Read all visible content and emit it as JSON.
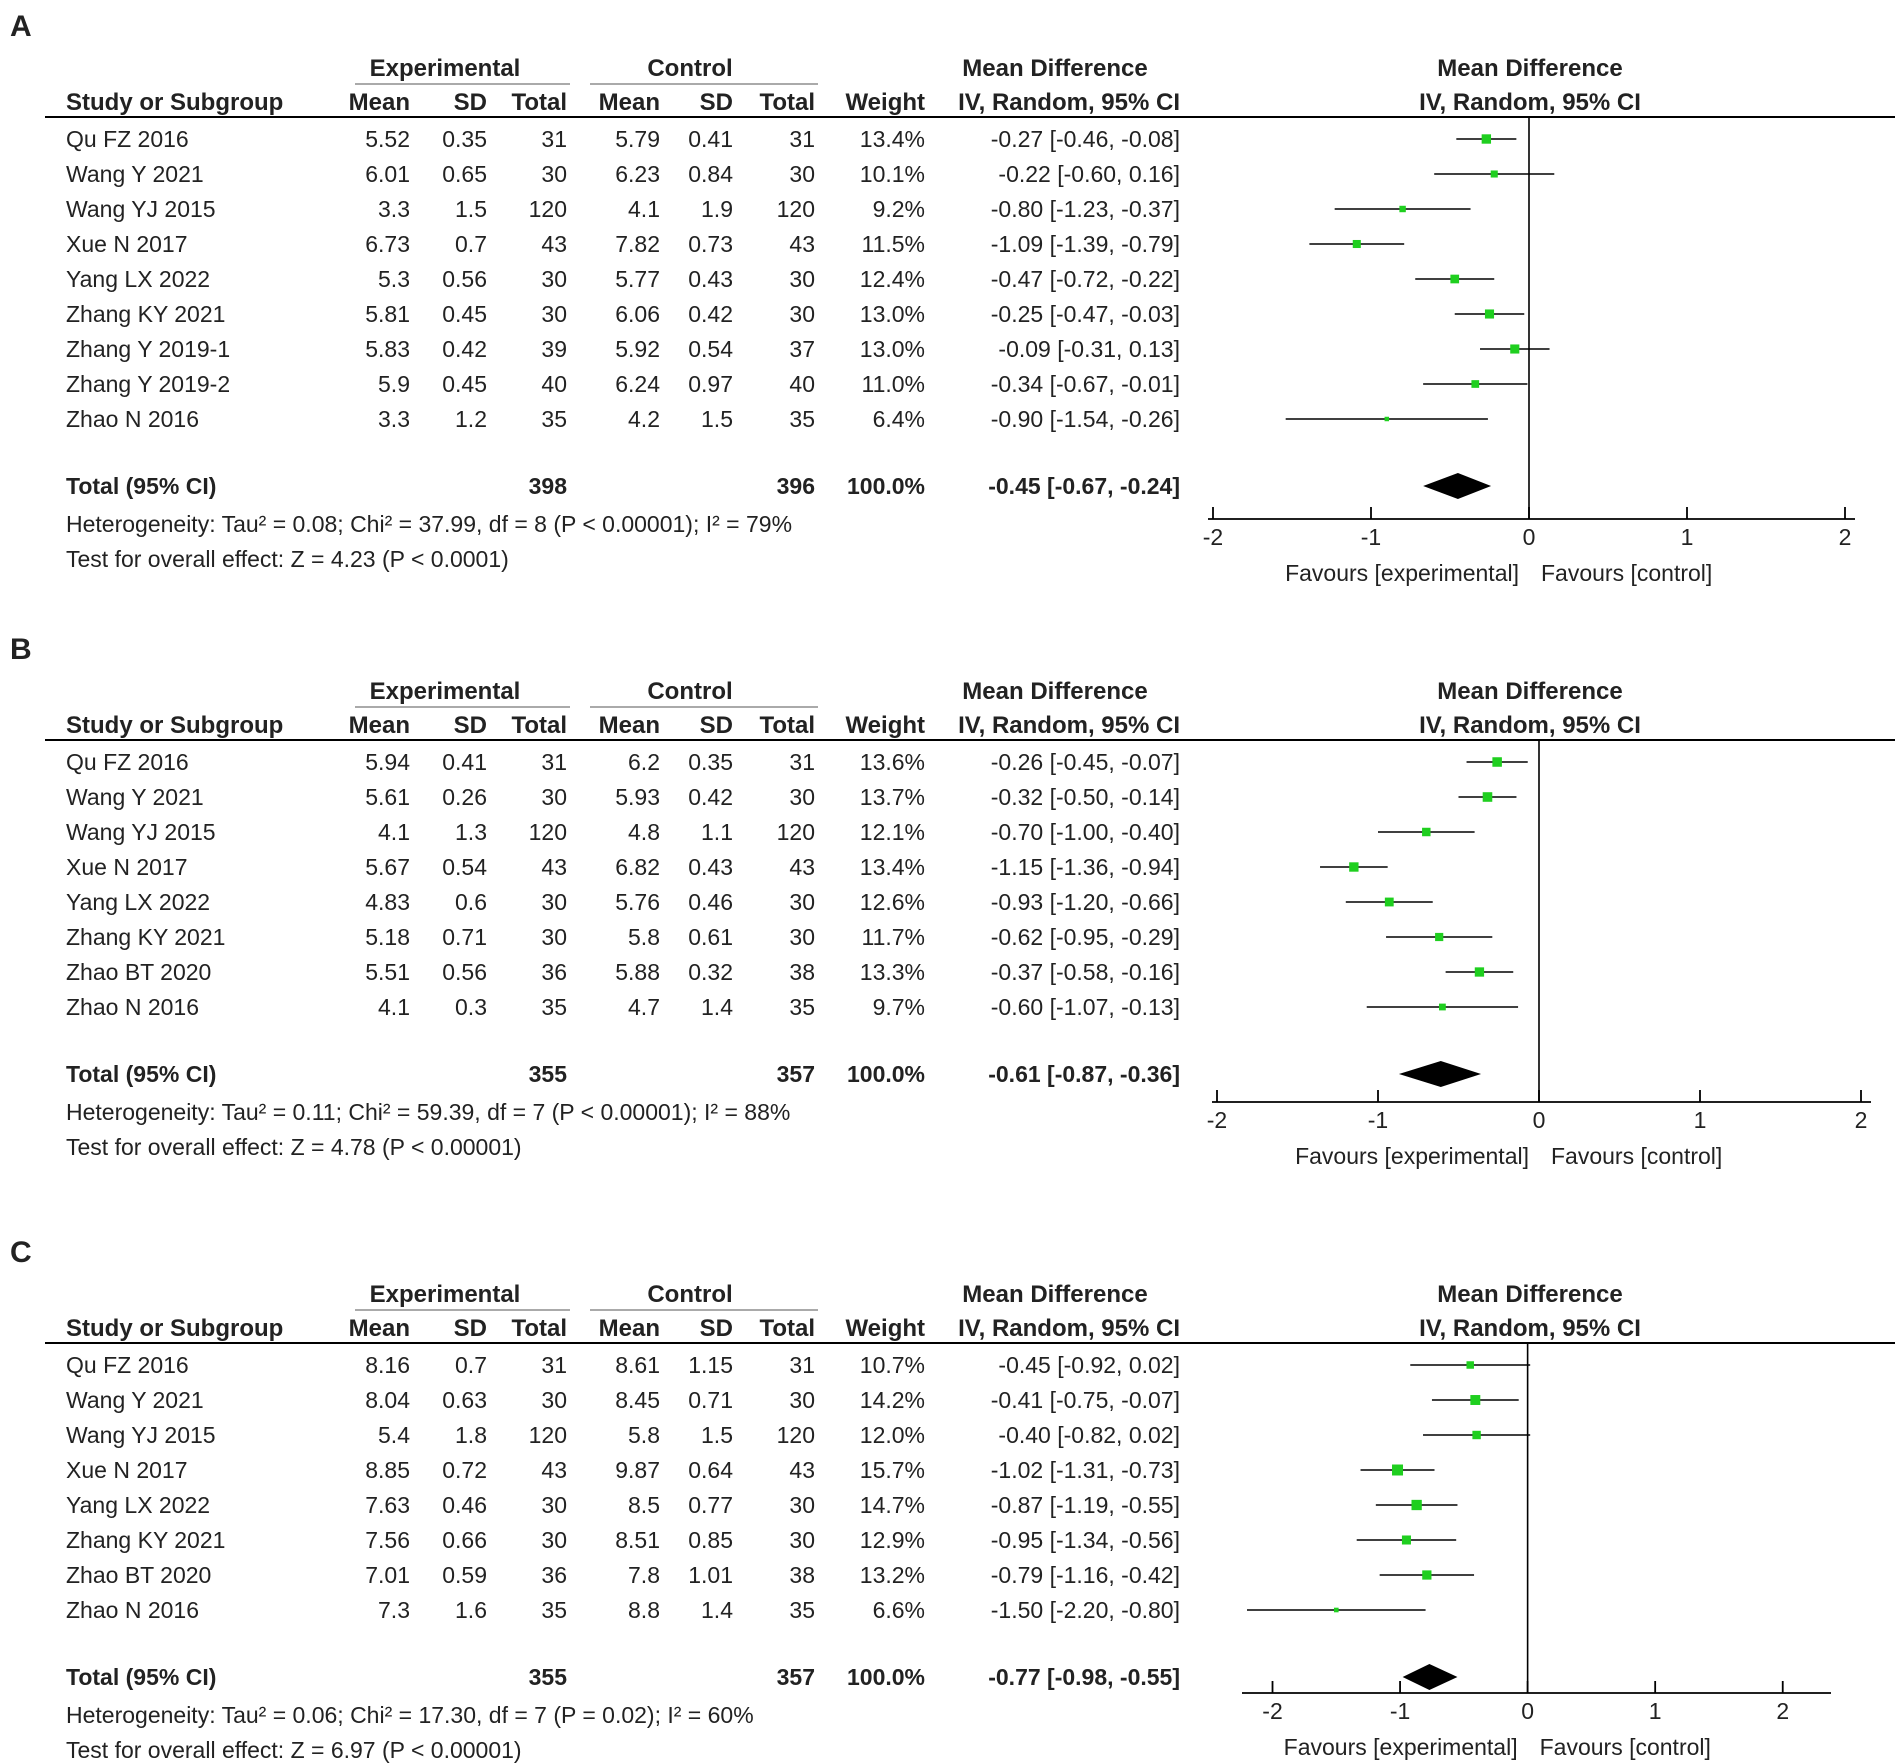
{
  "chart_data": [
    {
      "type": "forest",
      "panel_label": "A",
      "header": {
        "experimental": "Experimental",
        "control": "Control",
        "effect_group": "Mean Difference",
        "columns": [
          "Study or Subgroup",
          "Mean",
          "SD",
          "Total",
          "Mean",
          "SD",
          "Total",
          "Weight",
          "IV, Random, 95% CI"
        ],
        "plot_title": "Mean Difference",
        "plot_subtitle": "IV, Random, 95% CI"
      },
      "studies": [
        {
          "name": "Qu FZ 2016",
          "exp_mean": "5.52",
          "exp_sd": "0.35",
          "exp_total": "31",
          "ctl_mean": "5.79",
          "ctl_sd": "0.41",
          "ctl_total": "31",
          "weight": "13.4%",
          "ci_text": "-0.27 [-0.46, -0.08]",
          "md": -0.27,
          "lo": -0.46,
          "hi": -0.08
        },
        {
          "name": "Wang Y 2021",
          "exp_mean": "6.01",
          "exp_sd": "0.65",
          "exp_total": "30",
          "ctl_mean": "6.23",
          "ctl_sd": "0.84",
          "ctl_total": "30",
          "weight": "10.1%",
          "ci_text": "-0.22 [-0.60, 0.16]",
          "md": -0.22,
          "lo": -0.6,
          "hi": 0.16
        },
        {
          "name": "Wang YJ 2015",
          "exp_mean": "3.3",
          "exp_sd": "1.5",
          "exp_total": "120",
          "ctl_mean": "4.1",
          "ctl_sd": "1.9",
          "ctl_total": "120",
          "weight": "9.2%",
          "ci_text": "-0.80 [-1.23, -0.37]",
          "md": -0.8,
          "lo": -1.23,
          "hi": -0.37
        },
        {
          "name": "Xue N 2017",
          "exp_mean": "6.73",
          "exp_sd": "0.7",
          "exp_total": "43",
          "ctl_mean": "7.82",
          "ctl_sd": "0.73",
          "ctl_total": "43",
          "weight": "11.5%",
          "ci_text": "-1.09 [-1.39, -0.79]",
          "md": -1.09,
          "lo": -1.39,
          "hi": -0.79
        },
        {
          "name": "Yang LX 2022",
          "exp_mean": "5.3",
          "exp_sd": "0.56",
          "exp_total": "30",
          "ctl_mean": "5.77",
          "ctl_sd": "0.43",
          "ctl_total": "30",
          "weight": "12.4%",
          "ci_text": "-0.47 [-0.72, -0.22]",
          "md": -0.47,
          "lo": -0.72,
          "hi": -0.22
        },
        {
          "name": "Zhang KY 2021",
          "exp_mean": "5.81",
          "exp_sd": "0.45",
          "exp_total": "30",
          "ctl_mean": "6.06",
          "ctl_sd": "0.42",
          "ctl_total": "30",
          "weight": "13.0%",
          "ci_text": "-0.25 [-0.47, -0.03]",
          "md": -0.25,
          "lo": -0.47,
          "hi": -0.03
        },
        {
          "name": "Zhang Y 2019-1",
          "exp_mean": "5.83",
          "exp_sd": "0.42",
          "exp_total": "39",
          "ctl_mean": "5.92",
          "ctl_sd": "0.54",
          "ctl_total": "37",
          "weight": "13.0%",
          "ci_text": "-0.09 [-0.31, 0.13]",
          "md": -0.09,
          "lo": -0.31,
          "hi": 0.13
        },
        {
          "name": "Zhang Y 2019-2",
          "exp_mean": "5.9",
          "exp_sd": "0.45",
          "exp_total": "40",
          "ctl_mean": "6.24",
          "ctl_sd": "0.97",
          "ctl_total": "40",
          "weight": "11.0%",
          "ci_text": "-0.34 [-0.67, -0.01]",
          "md": -0.34,
          "lo": -0.67,
          "hi": -0.01
        },
        {
          "name": "Zhao N 2016",
          "exp_mean": "3.3",
          "exp_sd": "1.2",
          "exp_total": "35",
          "ctl_mean": "4.2",
          "ctl_sd": "1.5",
          "ctl_total": "35",
          "weight": "6.4%",
          "ci_text": "-0.90 [-1.54, -0.26]",
          "md": -0.9,
          "lo": -1.54,
          "hi": -0.26
        }
      ],
      "total": {
        "label": "Total (95% CI)",
        "exp_total": "398",
        "ctl_total": "396",
        "weight": "100.0%",
        "ci_text": "-0.45 [-0.67, -0.24]",
        "md": -0.45,
        "lo": -0.67,
        "hi": -0.24
      },
      "heterogeneity": "Heterogeneity: Tau² = 0.08; Chi² = 37.99, df = 8 (P < 0.00001); I² = 79%",
      "overall_effect": "Test for overall effect: Z = 4.23 (P < 0.0001)",
      "axis": {
        "ticks": [
          -2,
          -1,
          0,
          1,
          2
        ],
        "tick_labels": [
          "-2",
          "-1",
          "0",
          "1",
          "2"
        ],
        "xlim": [
          -2,
          2
        ]
      },
      "favours_left": "Favours [experimental]",
      "favours_right": "Favours [control]"
    },
    {
      "type": "forest",
      "panel_label": "B",
      "header": {
        "experimental": "Experimental",
        "control": "Control",
        "effect_group": "Mean Difference",
        "columns": [
          "Study or Subgroup",
          "Mean",
          "SD",
          "Total",
          "Mean",
          "SD",
          "Total",
          "Weight",
          "IV, Random, 95% CI"
        ],
        "plot_title": "Mean Difference",
        "plot_subtitle": "IV, Random, 95% CI"
      },
      "studies": [
        {
          "name": "Qu FZ 2016",
          "exp_mean": "5.94",
          "exp_sd": "0.41",
          "exp_total": "31",
          "ctl_mean": "6.2",
          "ctl_sd": "0.35",
          "ctl_total": "31",
          "weight": "13.6%",
          "ci_text": "-0.26 [-0.45, -0.07]",
          "md": -0.26,
          "lo": -0.45,
          "hi": -0.07
        },
        {
          "name": "Wang Y 2021",
          "exp_mean": "5.61",
          "exp_sd": "0.26",
          "exp_total": "30",
          "ctl_mean": "5.93",
          "ctl_sd": "0.42",
          "ctl_total": "30",
          "weight": "13.7%",
          "ci_text": "-0.32 [-0.50, -0.14]",
          "md": -0.32,
          "lo": -0.5,
          "hi": -0.14
        },
        {
          "name": "Wang YJ 2015",
          "exp_mean": "4.1",
          "exp_sd": "1.3",
          "exp_total": "120",
          "ctl_mean": "4.8",
          "ctl_sd": "1.1",
          "ctl_total": "120",
          "weight": "12.1%",
          "ci_text": "-0.70 [-1.00, -0.40]",
          "md": -0.7,
          "lo": -1.0,
          "hi": -0.4
        },
        {
          "name": "Xue N 2017",
          "exp_mean": "5.67",
          "exp_sd": "0.54",
          "exp_total": "43",
          "ctl_mean": "6.82",
          "ctl_sd": "0.43",
          "ctl_total": "43",
          "weight": "13.4%",
          "ci_text": "-1.15 [-1.36, -0.94]",
          "md": -1.15,
          "lo": -1.36,
          "hi": -0.94
        },
        {
          "name": "Yang LX 2022",
          "exp_mean": "4.83",
          "exp_sd": "0.6",
          "exp_total": "30",
          "ctl_mean": "5.76",
          "ctl_sd": "0.46",
          "ctl_total": "30",
          "weight": "12.6%",
          "ci_text": "-0.93 [-1.20, -0.66]",
          "md": -0.93,
          "lo": -1.2,
          "hi": -0.66
        },
        {
          "name": "Zhang KY 2021",
          "exp_mean": "5.18",
          "exp_sd": "0.71",
          "exp_total": "30",
          "ctl_mean": "5.8",
          "ctl_sd": "0.61",
          "ctl_total": "30",
          "weight": "11.7%",
          "ci_text": "-0.62 [-0.95, -0.29]",
          "md": -0.62,
          "lo": -0.95,
          "hi": -0.29
        },
        {
          "name": "Zhao BT 2020",
          "exp_mean": "5.51",
          "exp_sd": "0.56",
          "exp_total": "36",
          "ctl_mean": "5.88",
          "ctl_sd": "0.32",
          "ctl_total": "38",
          "weight": "13.3%",
          "ci_text": "-0.37 [-0.58, -0.16]",
          "md": -0.37,
          "lo": -0.58,
          "hi": -0.16
        },
        {
          "name": "Zhao N 2016",
          "exp_mean": "4.1",
          "exp_sd": "0.3",
          "exp_total": "35",
          "ctl_mean": "4.7",
          "ctl_sd": "1.4",
          "ctl_total": "35",
          "weight": "9.7%",
          "ci_text": "-0.60 [-1.07, -0.13]",
          "md": -0.6,
          "lo": -1.07,
          "hi": -0.13
        }
      ],
      "total": {
        "label": "Total (95% CI)",
        "exp_total": "355",
        "ctl_total": "357",
        "weight": "100.0%",
        "ci_text": "-0.61 [-0.87, -0.36]",
        "md": -0.61,
        "lo": -0.87,
        "hi": -0.36
      },
      "heterogeneity": "Heterogeneity: Tau² = 0.11; Chi² = 59.39, df = 7 (P < 0.00001); I² = 88%",
      "overall_effect": "Test for overall effect: Z = 4.78 (P < 0.00001)",
      "axis": {
        "ticks": [
          -2,
          -1,
          0,
          1,
          2
        ],
        "tick_labels": [
          "-2",
          "-1",
          "0",
          "1",
          "2"
        ],
        "xlim": [
          -2,
          2
        ]
      },
      "favours_left": "Favours [experimental]",
      "favours_right": "Favours [control]"
    },
    {
      "type": "forest",
      "panel_label": "C",
      "header": {
        "experimental": "Experimental",
        "control": "Control",
        "effect_group": "Mean Difference",
        "columns": [
          "Study or Subgroup",
          "Mean",
          "SD",
          "Total",
          "Mean",
          "SD",
          "Total",
          "Weight",
          "IV, Random, 95% CI"
        ],
        "plot_title": "Mean Difference",
        "plot_subtitle": "IV, Random, 95% CI"
      },
      "studies": [
        {
          "name": "Qu FZ 2016",
          "exp_mean": "8.16",
          "exp_sd": "0.7",
          "exp_total": "31",
          "ctl_mean": "8.61",
          "ctl_sd": "1.15",
          "ctl_total": "31",
          "weight": "10.7%",
          "ci_text": "-0.45 [-0.92, 0.02]",
          "md": -0.45,
          "lo": -0.92,
          "hi": 0.02
        },
        {
          "name": "Wang Y 2021",
          "exp_mean": "8.04",
          "exp_sd": "0.63",
          "exp_total": "30",
          "ctl_mean": "8.45",
          "ctl_sd": "0.71",
          "ctl_total": "30",
          "weight": "14.2%",
          "ci_text": "-0.41 [-0.75, -0.07]",
          "md": -0.41,
          "lo": -0.75,
          "hi": -0.07
        },
        {
          "name": "Wang YJ 2015",
          "exp_mean": "5.4",
          "exp_sd": "1.8",
          "exp_total": "120",
          "ctl_mean": "5.8",
          "ctl_sd": "1.5",
          "ctl_total": "120",
          "weight": "12.0%",
          "ci_text": "-0.40 [-0.82, 0.02]",
          "md": -0.4,
          "lo": -0.82,
          "hi": 0.02
        },
        {
          "name": "Xue N 2017",
          "exp_mean": "8.85",
          "exp_sd": "0.72",
          "exp_total": "43",
          "ctl_mean": "9.87",
          "ctl_sd": "0.64",
          "ctl_total": "43",
          "weight": "15.7%",
          "ci_text": "-1.02 [-1.31, -0.73]",
          "md": -1.02,
          "lo": -1.31,
          "hi": -0.73
        },
        {
          "name": "Yang LX 2022",
          "exp_mean": "7.63",
          "exp_sd": "0.46",
          "exp_total": "30",
          "ctl_mean": "8.5",
          "ctl_sd": "0.77",
          "ctl_total": "30",
          "weight": "14.7%",
          "ci_text": "-0.87 [-1.19, -0.55]",
          "md": -0.87,
          "lo": -1.19,
          "hi": -0.55
        },
        {
          "name": "Zhang KY 2021",
          "exp_mean": "7.56",
          "exp_sd": "0.66",
          "exp_total": "30",
          "ctl_mean": "8.51",
          "ctl_sd": "0.85",
          "ctl_total": "30",
          "weight": "12.9%",
          "ci_text": "-0.95 [-1.34, -0.56]",
          "md": -0.95,
          "lo": -1.34,
          "hi": -0.56
        },
        {
          "name": "Zhao BT 2020",
          "exp_mean": "7.01",
          "exp_sd": "0.59",
          "exp_total": "36",
          "ctl_mean": "7.8",
          "ctl_sd": "1.01",
          "ctl_total": "38",
          "weight": "13.2%",
          "ci_text": "-0.79 [-1.16, -0.42]",
          "md": -0.79,
          "lo": -1.16,
          "hi": -0.42
        },
        {
          "name": "Zhao N 2016",
          "exp_mean": "7.3",
          "exp_sd": "1.6",
          "exp_total": "35",
          "ctl_mean": "8.8",
          "ctl_sd": "1.4",
          "ctl_total": "35",
          "weight": "6.6%",
          "ci_text": "-1.50 [-2.20, -0.80]",
          "md": -1.5,
          "lo": -2.2,
          "hi": -0.8
        }
      ],
      "total": {
        "label": "Total (95% CI)",
        "exp_total": "355",
        "ctl_total": "357",
        "weight": "100.0%",
        "ci_text": "-0.77 [-0.98, -0.55]",
        "md": -0.77,
        "lo": -0.98,
        "hi": -0.55
      },
      "heterogeneity": "Heterogeneity: Tau² = 0.06; Chi² = 17.30, df = 7 (P = 0.02); I² = 60%",
      "overall_effect": "Test for overall effect: Z = 6.97 (P < 0.00001)",
      "axis": {
        "ticks": [
          -2,
          -1,
          0,
          1,
          2
        ],
        "tick_labels": [
          "-2",
          "-1",
          "0",
          "1",
          "2"
        ],
        "xlim": [
          -2.2,
          2.3
        ]
      },
      "favours_left": "Favours [experimental]",
      "favours_right": "Favours [control]"
    }
  ],
  "colors": {
    "marker": "#1fcf1f",
    "diamond": "#000000",
    "line": "#000000",
    "text": "#222222"
  }
}
